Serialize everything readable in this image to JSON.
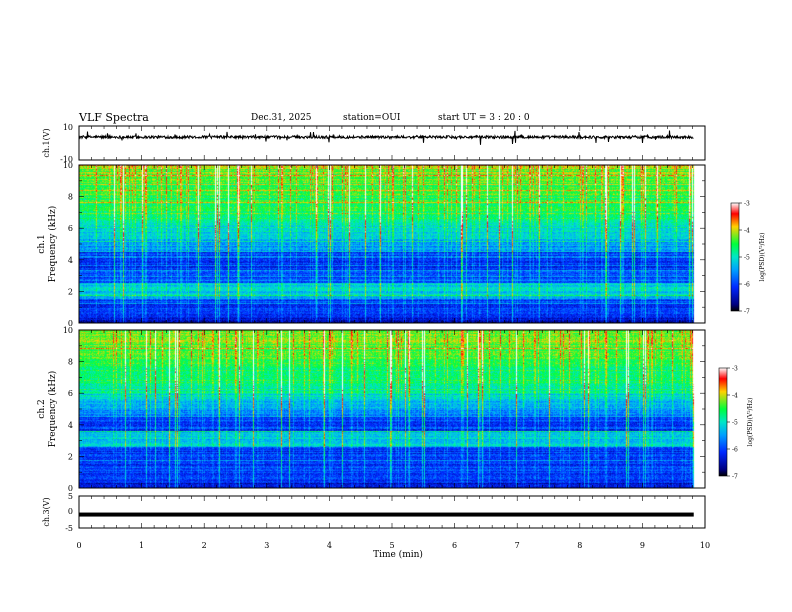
{
  "header": {
    "title": "VLF Spectra",
    "date": "Dec.31, 2025",
    "station": "station=OUI",
    "start": "start  UT =   3 : 20 : 0"
  },
  "chart_data": [
    {
      "type": "line",
      "panel": "ch1-waveform",
      "ylabel": "ch.1(V)",
      "ylim": [
        -10,
        10
      ],
      "yticks": [
        "10",
        "-10"
      ],
      "xlim": [
        0,
        10
      ],
      "baseline": 3.5,
      "color": "#000000"
    },
    {
      "type": "heatmap",
      "panel": "ch1-spectrogram",
      "ylabel_channel": "ch.1",
      "ylabel": "Frequency (kHz)",
      "ylim": [
        0,
        10
      ],
      "yticks": [
        "0",
        "2",
        "4",
        "6",
        "8",
        "10"
      ],
      "xlim": [
        0,
        10
      ],
      "colorbar": {
        "label": "log(PSD)(V²/Hz)",
        "range": [
          -7,
          -3
        ],
        "ticks": [
          "-7",
          "-6",
          "-5",
          "-4",
          "-3"
        ],
        "colormap": [
          "#ffffff",
          "#ff0000",
          "#ffd200",
          "#00ff3c",
          "#00e6c8",
          "#00a0ff",
          "#0028ff",
          "#000080",
          "#000000"
        ]
      },
      "persistent_band_kHz": [
        1.5,
        2.5
      ]
    },
    {
      "type": "heatmap",
      "panel": "ch2-spectrogram",
      "ylabel_channel": "ch.2",
      "ylabel": "Frequency (kHz)",
      "ylim": [
        0,
        10
      ],
      "yticks": [
        "0",
        "2",
        "4",
        "6",
        "8",
        "10"
      ],
      "xlim": [
        0,
        10
      ],
      "colorbar": {
        "label": "log(PSD)(V²/Hz)",
        "range": [
          -7,
          -3
        ],
        "ticks": [
          "-7",
          "-6",
          "-5",
          "-4",
          "-3"
        ],
        "colormap": [
          "#ffffff",
          "#ff0000",
          "#ffd200",
          "#00ff3c",
          "#00e6c8",
          "#00a0ff",
          "#0028ff",
          "#000080",
          "#000000"
        ]
      },
      "persistent_band_kHz": [
        2.6,
        3.6
      ]
    },
    {
      "type": "line",
      "panel": "ch3-waveform",
      "ylabel": "ch.3(V)",
      "ylim": [
        -5,
        5
      ],
      "yticks": [
        "5",
        "0",
        "-5"
      ],
      "xlim": [
        0,
        10
      ],
      "baseline": -0.8,
      "color": "#000000",
      "xlabel": "Time (min)",
      "xticks": [
        "0",
        "1",
        "2",
        "3",
        "4",
        "5",
        "6",
        "7",
        "8",
        "9",
        "10"
      ],
      "data_end_min": 9.82
    }
  ]
}
